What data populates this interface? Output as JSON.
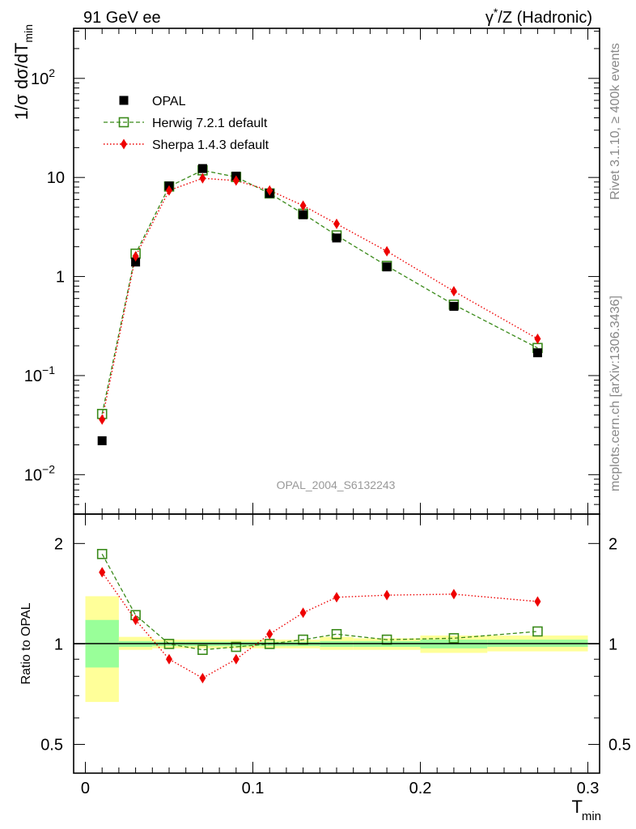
{
  "header": {
    "left": "91 GeV ee",
    "right_prefix": "γ",
    "right_sup": "*",
    "right_suffix": "/Z (Hadronic)"
  },
  "side": {
    "rivet": "Rivet 3.1.10, ≥ 400k events",
    "mcplots": "mcplots.cern.ch [arXiv:1306.3436]"
  },
  "analysis_id": "OPAL_2004_S6132243",
  "axes": {
    "ylabel_main_prefix": "1/σ dσ/dT",
    "ylabel_main_sub": "min",
    "ylabel_ratio": "Ratio to OPAL",
    "xlabel": "T",
    "xlabel_sub": "min",
    "main_ticks": [
      {
        "base": "10",
        "exp": "2",
        "v": 100
      },
      {
        "base": "10",
        "exp": "",
        "v": 10
      },
      {
        "base": "1",
        "exp": "",
        "v": 1
      },
      {
        "base": "10",
        "exp": "−1",
        "v": 0.1
      },
      {
        "base": "10",
        "exp": "−2",
        "v": 0.01
      }
    ],
    "ratio_ticks": [
      {
        "label": "2",
        "v": 2
      },
      {
        "label": "1",
        "v": 1
      },
      {
        "label": "0.5",
        "v": 0.5
      }
    ],
    "x_ticks": [
      {
        "label": "0",
        "v": 0
      },
      {
        "label": "0.1",
        "v": 0.1
      },
      {
        "label": "0.2",
        "v": 0.2
      },
      {
        "label": "0.3",
        "v": 0.3
      }
    ]
  },
  "legend": [
    {
      "key": "data",
      "label": "OPAL"
    },
    {
      "key": "herwig",
      "label": "Herwig 7.2.1 default"
    },
    {
      "key": "sherpa",
      "label": "Sherpa 1.4.3 default"
    }
  ],
  "colors": {
    "data": "#000000",
    "herwig": "#3a8a1a",
    "sherpa": "#ee0000",
    "band_inner": "#99ff99",
    "band_outer": "#ffff99"
  },
  "chart_data": [
    {
      "type": "scatter",
      "panel": "main",
      "xlim": [
        -0.007,
        0.307
      ],
      "ylim": [
        0.004,
        320
      ],
      "yscale": "log",
      "x": [
        0.01,
        0.03,
        0.05,
        0.07,
        0.09,
        0.11,
        0.13,
        0.15,
        0.18,
        0.22,
        0.27
      ],
      "series": [
        {
          "key": "data",
          "name": "OPAL",
          "values": [
            0.022,
            1.4,
            8.2,
            12.3,
            10.3,
            6.9,
            4.2,
            2.45,
            1.25,
            0.5,
            0.17
          ]
        },
        {
          "key": "herwig",
          "name": "Herwig 7.2.1 default",
          "values": [
            0.041,
            1.7,
            8.1,
            11.8,
            10.1,
            6.9,
            4.3,
            2.6,
            1.28,
            0.52,
            0.19
          ]
        },
        {
          "key": "sherpa",
          "name": "Sherpa 1.4.3 default",
          "values": [
            0.036,
            1.6,
            7.4,
            9.8,
            9.3,
            7.4,
            5.2,
            3.4,
            1.8,
            0.71,
            0.235
          ]
        }
      ]
    },
    {
      "type": "line",
      "panel": "ratio",
      "xlim": [
        -0.007,
        0.307
      ],
      "ylim": [
        0.41,
        2.45
      ],
      "yscale": "log",
      "x": [
        0.01,
        0.03,
        0.05,
        0.07,
        0.09,
        0.11,
        0.13,
        0.15,
        0.18,
        0.22,
        0.27
      ],
      "series": [
        {
          "key": "herwig",
          "name": "Herwig 7.2.1 default",
          "values": [
            1.86,
            1.22,
            1.0,
            0.96,
            0.98,
            1.0,
            1.03,
            1.07,
            1.03,
            1.04,
            1.09
          ]
        },
        {
          "key": "sherpa",
          "name": "Sherpa 1.4.3 default",
          "values": [
            1.64,
            1.18,
            0.9,
            0.79,
            0.9,
            1.07,
            1.24,
            1.38,
            1.4,
            1.41,
            1.34
          ]
        }
      ],
      "bands": [
        {
          "x0": 0.0,
          "x1": 0.02,
          "outer": [
            0.67,
            1.39
          ],
          "inner": [
            0.85,
            1.18
          ]
        },
        {
          "x0": 0.02,
          "x1": 0.04,
          "outer": [
            0.96,
            1.05
          ],
          "inner": [
            0.98,
            1.02
          ]
        },
        {
          "x0": 0.04,
          "x1": 0.06,
          "outer": [
            0.97,
            1.03
          ],
          "inner": [
            0.985,
            1.015
          ]
        },
        {
          "x0": 0.06,
          "x1": 0.08,
          "outer": [
            0.97,
            1.03
          ],
          "inner": [
            0.985,
            1.015
          ]
        },
        {
          "x0": 0.08,
          "x1": 0.1,
          "outer": [
            0.97,
            1.03
          ],
          "inner": [
            0.985,
            1.015
          ]
        },
        {
          "x0": 0.1,
          "x1": 0.12,
          "outer": [
            0.97,
            1.03
          ],
          "inner": [
            0.985,
            1.015
          ]
        },
        {
          "x0": 0.12,
          "x1": 0.14,
          "outer": [
            0.97,
            1.03
          ],
          "inner": [
            0.985,
            1.015
          ]
        },
        {
          "x0": 0.14,
          "x1": 0.16,
          "outer": [
            0.96,
            1.05
          ],
          "inner": [
            0.98,
            1.02
          ]
        },
        {
          "x0": 0.16,
          "x1": 0.2,
          "outer": [
            0.96,
            1.04
          ],
          "inner": [
            0.98,
            1.02
          ]
        },
        {
          "x0": 0.2,
          "x1": 0.24,
          "outer": [
            0.94,
            1.06
          ],
          "inner": [
            0.97,
            1.03
          ]
        },
        {
          "x0": 0.24,
          "x1": 0.3,
          "outer": [
            0.95,
            1.06
          ],
          "inner": [
            0.98,
            1.03
          ]
        }
      ]
    }
  ]
}
